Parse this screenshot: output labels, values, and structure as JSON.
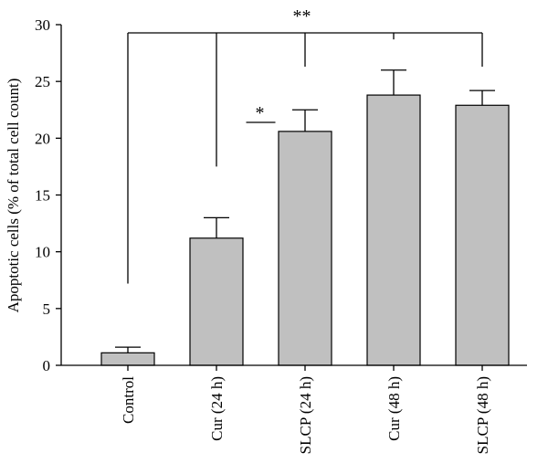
{
  "chart_data": {
    "type": "bar",
    "categories": [
      "Control",
      "Cur (24 h)",
      "SLCP (24 h)",
      "Cur (48 h)",
      "SLCP (48 h)"
    ],
    "values": [
      1.1,
      11.2,
      20.6,
      23.8,
      22.9
    ],
    "errors": [
      0.5,
      1.8,
      1.9,
      2.2,
      1.3
    ],
    "ylabel": "Apoptotic cells (% of total cell count)",
    "xlabel": "",
    "ylim": [
      0,
      30
    ],
    "yticks": [
      0,
      5,
      10,
      15,
      20,
      25,
      30
    ],
    "grid": false,
    "bar_color": "#c0c0c0",
    "significance": [
      {
        "label": "**",
        "from": "Control",
        "to": [
          "Cur (24 h)",
          "SLCP (24 h)",
          "Cur (48 h)",
          "SLCP (48 h)"
        ]
      },
      {
        "label": "*",
        "between": [
          "Cur (24 h)",
          "SLCP (24 h)"
        ]
      }
    ]
  }
}
